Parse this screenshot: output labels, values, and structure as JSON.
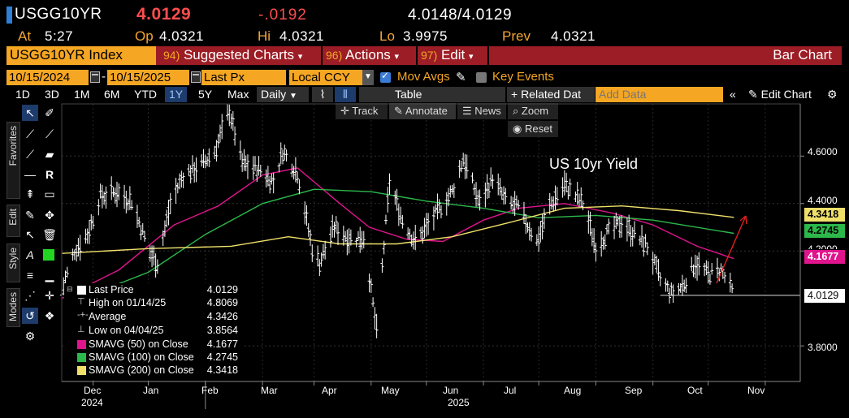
{
  "security": {
    "ticker": "USGG10YR",
    "last": "4.0129",
    "change": "-.0192",
    "bid_ask": "4.0148/4.0129",
    "at_label": "At",
    "at": "5:27",
    "op_label": "Op",
    "op": "4.0321",
    "hi_label": "Hi",
    "hi": "4.0321",
    "lo_label": "Lo",
    "lo": "3.9975",
    "prev_label": "Prev",
    "prev": "4.0321"
  },
  "function_bar": {
    "index": "USGG10YR Index",
    "suggested_num": "94)",
    "suggested": "Suggested Charts",
    "actions_num": "96)",
    "actions": "Actions",
    "edit_num": "97)",
    "edit": "Edit",
    "title": "Bar Chart"
  },
  "settings": {
    "start_date": "10/15/2024",
    "end_date": "10/15/2025",
    "field": "Last Px",
    "currency": "Local CCY",
    "mov_avgs": "Mov Avgs",
    "key_events": "Key Events"
  },
  "toolbar": {
    "periods": [
      "1D",
      "3D",
      "1M",
      "6M",
      "YTD",
      "1Y",
      "5Y",
      "Max"
    ],
    "active_period": "1Y",
    "frequency": "Daily",
    "table": "Table",
    "related": "+ Related Dat",
    "add_data_placeholder": "Add Data",
    "edit_chart": "Edit Chart"
  },
  "overlay": {
    "track": "Track",
    "annotate": "Annotate",
    "news": "News",
    "zoom": "Zoom",
    "reset": "Reset"
  },
  "side_tabs": {
    "favorites": "Favorites",
    "edit": "Edit",
    "style": "Style",
    "modes": "Modes"
  },
  "legend": {
    "last_price_label": "Last Price",
    "last_price": "4.0129",
    "high_label": "High on 01/14/25",
    "high": "4.8069",
    "average_label": "Average",
    "average": "4.3426",
    "low_label": "Low on 04/04/25",
    "low": "3.8564",
    "sma50_label": "SMAVG (50)  on Close",
    "sma50": "4.1677",
    "sma100_label": "SMAVG (100)  on Close",
    "sma100": "4.2745",
    "sma200_label": "SMAVG (200)  on Close",
    "sma200": "4.3418"
  },
  "colors": {
    "price": "#ffffff",
    "sma50": "#e0148c",
    "sma100": "#2db84b",
    "sma200": "#f0e06a",
    "accent": "#f5a623",
    "function_bar": "#9c1d25",
    "negative": "#ff4d4d"
  },
  "chart_data": {
    "type": "line",
    "annotation": "US 10yr Yield",
    "y_ticks": [
      "4.6000",
      "4.4000",
      "4.2000",
      "3.8000"
    ],
    "tags": {
      "sma200": "4.3418",
      "sma100": "4.2745",
      "sma50": "4.1677",
      "last": "4.0129"
    },
    "x_month_labels": [
      "Dec",
      "Jan",
      "Feb",
      "Mar",
      "Apr",
      "May",
      "Jun",
      "Jul",
      "Aug",
      "Sep",
      "Oct",
      "Nov"
    ],
    "x_year_labels": [
      "2024",
      "2025"
    ],
    "x_range": [
      "2024-10-15",
      "2025-11-20"
    ],
    "ylim": [
      3.65,
      4.82
    ],
    "price_points": [
      [
        "2024-10-15",
        4.03
      ],
      [
        "2024-10-22",
        4.2
      ],
      [
        "2024-10-29",
        4.27
      ],
      [
        "2024-11-05",
        4.43
      ],
      [
        "2024-11-14",
        4.45
      ],
      [
        "2024-11-22",
        4.41
      ],
      [
        "2024-12-02",
        4.19
      ],
      [
        "2024-12-06",
        4.15
      ],
      [
        "2024-12-13",
        4.4
      ],
      [
        "2024-12-20",
        4.52
      ],
      [
        "2024-12-31",
        4.57
      ],
      [
        "2025-01-06",
        4.62
      ],
      [
        "2025-01-14",
        4.79
      ],
      [
        "2025-01-21",
        4.57
      ],
      [
        "2025-01-31",
        4.54
      ],
      [
        "2025-02-07",
        4.49
      ],
      [
        "2025-02-12",
        4.62
      ],
      [
        "2025-02-20",
        4.53
      ],
      [
        "2025-02-28",
        4.21
      ],
      [
        "2025-03-04",
        4.15
      ],
      [
        "2025-03-12",
        4.3
      ],
      [
        "2025-03-21",
        4.25
      ],
      [
        "2025-03-28",
        4.26
      ],
      [
        "2025-04-04",
        3.86
      ],
      [
        "2025-04-11",
        4.49
      ],
      [
        "2025-04-18",
        4.33
      ],
      [
        "2025-04-25",
        4.24
      ],
      [
        "2025-05-02",
        4.31
      ],
      [
        "2025-05-15",
        4.45
      ],
      [
        "2025-05-21",
        4.59
      ],
      [
        "2025-05-30",
        4.4
      ],
      [
        "2025-06-06",
        4.51
      ],
      [
        "2025-06-13",
        4.41
      ],
      [
        "2025-06-20",
        4.38
      ],
      [
        "2025-06-30",
        4.24
      ],
      [
        "2025-07-07",
        4.39
      ],
      [
        "2025-07-15",
        4.48
      ],
      [
        "2025-07-25",
        4.4
      ],
      [
        "2025-08-01",
        4.22
      ],
      [
        "2025-08-08",
        4.28
      ],
      [
        "2025-08-15",
        4.32
      ],
      [
        "2025-08-22",
        4.27
      ],
      [
        "2025-08-29",
        4.22
      ],
      [
        "2025-09-05",
        4.08
      ],
      [
        "2025-09-11",
        4.02
      ],
      [
        "2025-09-17",
        4.05
      ],
      [
        "2025-09-24",
        4.15
      ],
      [
        "2025-10-01",
        4.1
      ],
      [
        "2025-10-08",
        4.12
      ],
      [
        "2025-10-15",
        4.0129
      ]
    ],
    "series": [
      {
        "name": "SMAVG (50)  on Close",
        "points": [
          [
            "2024-10-15",
            4.0
          ],
          [
            "2024-11-15",
            4.12
          ],
          [
            "2024-12-15",
            4.31
          ],
          [
            "2025-01-08",
            4.39
          ],
          [
            "2025-02-01",
            4.52
          ],
          [
            "2025-02-20",
            4.55
          ],
          [
            "2025-03-15",
            4.4
          ],
          [
            "2025-03-31",
            4.3
          ],
          [
            "2025-04-20",
            4.25
          ],
          [
            "2025-05-10",
            4.24
          ],
          [
            "2025-06-01",
            4.33
          ],
          [
            "2025-06-20",
            4.38
          ],
          [
            "2025-07-15",
            4.4
          ],
          [
            "2025-08-10",
            4.36
          ],
          [
            "2025-09-01",
            4.31
          ],
          [
            "2025-09-25",
            4.22
          ],
          [
            "2025-10-15",
            4.1677
          ]
        ]
      },
      {
        "name": "SMAVG (100)  on Close",
        "points": [
          [
            "2024-11-01",
            4.02
          ],
          [
            "2024-12-01",
            4.11
          ],
          [
            "2025-01-01",
            4.27
          ],
          [
            "2025-02-01",
            4.4
          ],
          [
            "2025-03-01",
            4.46
          ],
          [
            "2025-04-01",
            4.45
          ],
          [
            "2025-05-01",
            4.41
          ],
          [
            "2025-06-01",
            4.38
          ],
          [
            "2025-07-01",
            4.34
          ],
          [
            "2025-08-01",
            4.35
          ],
          [
            "2025-09-01",
            4.33
          ],
          [
            "2025-10-15",
            4.2745
          ]
        ]
      },
      {
        "name": "SMAVG (200)  on Close",
        "points": [
          [
            "2024-10-15",
            4.19
          ],
          [
            "2024-12-01",
            4.21
          ],
          [
            "2025-01-15",
            4.22
          ],
          [
            "2025-02-15",
            4.26
          ],
          [
            "2025-03-15",
            4.23
          ],
          [
            "2025-04-15",
            4.23
          ],
          [
            "2025-05-15",
            4.26
          ],
          [
            "2025-06-15",
            4.32
          ],
          [
            "2025-07-15",
            4.38
          ],
          [
            "2025-08-15",
            4.39
          ],
          [
            "2025-09-15",
            4.37
          ],
          [
            "2025-10-15",
            4.3418
          ]
        ]
      }
    ]
  }
}
